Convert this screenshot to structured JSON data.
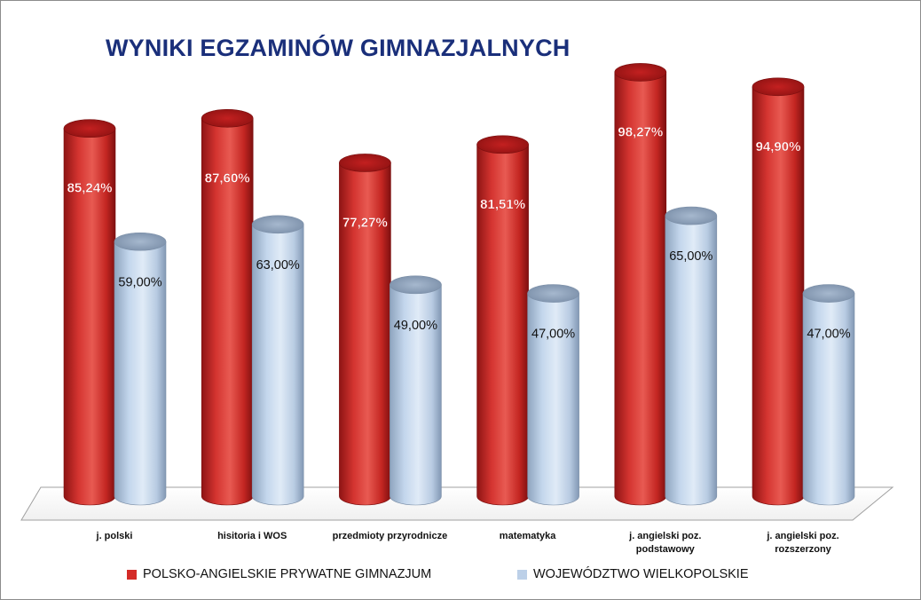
{
  "chart_data": {
    "type": "bar",
    "title": "WYNIKI EGZAMINÓW GIMNAZJALNYCH",
    "xlabel": "",
    "ylabel": "",
    "ylim": [
      0,
      100
    ],
    "grid": false,
    "legend_position": "bottom",
    "categories": [
      [
        "j. polski"
      ],
      [
        "hisitoria i WOS"
      ],
      [
        "przedmioty przyrodnicze"
      ],
      [
        "matematyka"
      ],
      [
        "j. angielski poz.",
        "podstawowy"
      ],
      [
        "j. angielski poz.",
        "rozszerzony"
      ]
    ],
    "series": [
      {
        "name": "POLSKO-ANGIELSKIE PRYWATNE GIMNAZJUM",
        "color": "#d42b27",
        "values": [
          85.24,
          87.6,
          77.27,
          81.51,
          98.27,
          94.9
        ],
        "labels": [
          "85,24%",
          "87,60%",
          "77,27%",
          "81,51%",
          "98,27%",
          "94,90%"
        ]
      },
      {
        "name": "WOJEWÓDZTWO WIELKOPOLSKIE",
        "color": "#bcd0e8",
        "values": [
          59.0,
          63.0,
          49.0,
          47.0,
          65.0,
          47.0
        ],
        "labels": [
          "59,00%",
          "63,00%",
          "49,00%",
          "47,00%",
          "65,00%",
          "47,00%"
        ]
      }
    ]
  }
}
